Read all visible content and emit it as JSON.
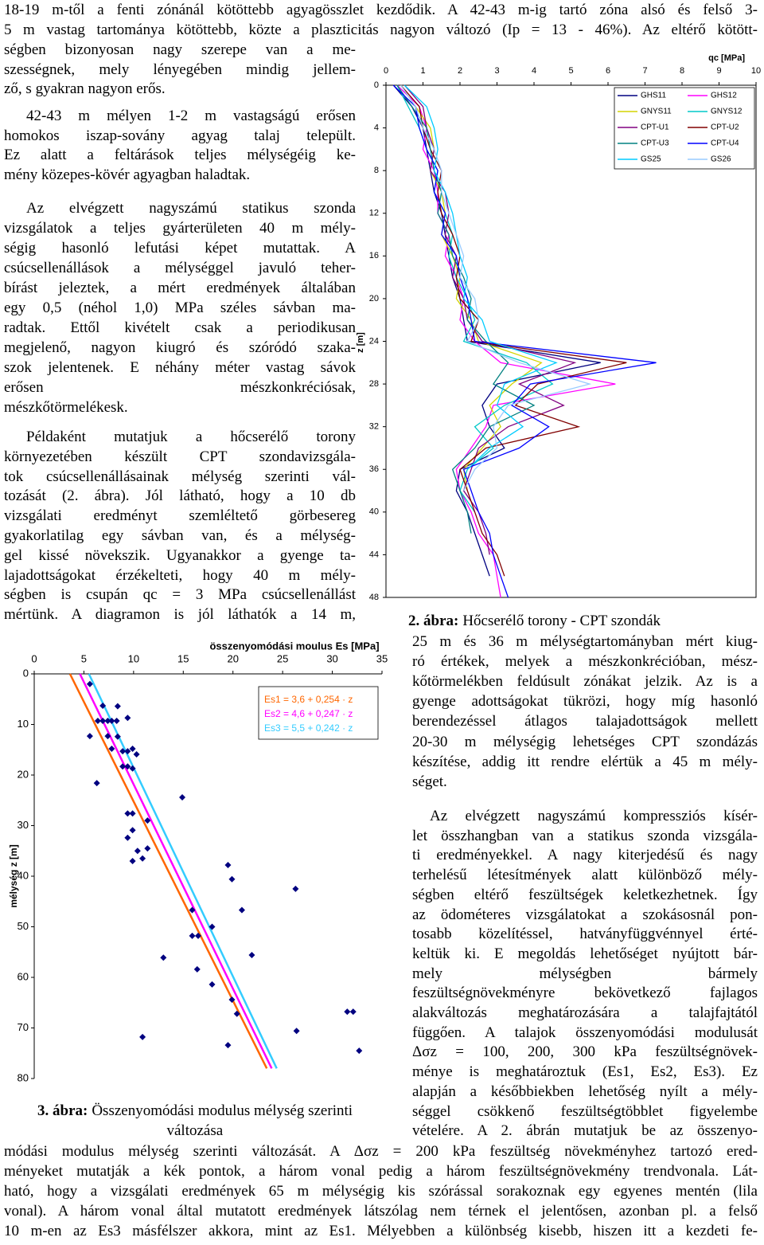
{
  "text": {
    "top": [
      "18-19 m-től a fenti zónánál kötöttebb agyagösszlet kezdődik. A 42-43 m-ig tartó zóna alsó és felső 3-",
      "5 m vastag tartománya kötöttebb, közte a plaszticitás nagyon változó (Ip = 13 - 46%). Az eltérő kötött-"
    ],
    "left": [
      [
        "ségben bizonyosan nagy szerepe van a me-",
        "szességnek, mely lényegében mindig jellem-",
        "ző, s gyakran nagyon erős."
      ],
      [
        "42-43 m mélyen 1-2 m vastagságú erősen",
        "homokos iszap-sovány agyag talaj települt.",
        "Ez alatt a feltárások teljes mélységéig ke-",
        "mény közepes-kövér agyagban haladtak."
      ],
      [
        "Az elvégzett nagyszámú statikus szonda",
        "vizsgálatok a teljes gyárterületen 40 m mély-",
        "ségig hasonló lefutási képet mutattak. A",
        "csúcsellenállások a mélységgel javuló teher-",
        "bírást jeleztek, a mért eredmények általában",
        "egy 0,5 (néhol 1,0) MPa széles sávban ma-",
        "radtak. Ettől kivételt csak a periodikusan",
        "megjelenő, nagyon kiugró és szóródó szaka-",
        "szok jelentenek. E néhány méter vastag sávok",
        "erősen mészkonkréciósak,",
        "mészkőtörmelékesk."
      ],
      [
        "Példaként mutatjuk a hőcserélő torony",
        "környezetében készült CPT szondavizsgála-",
        "tok csúcsellenállásainak mélység szerinti vál-",
        "tozását (2. ábra). Jól látható, hogy a 10 db",
        "vizsgálati eredményt szemléltető görbesereg",
        "gyakorlatilag egy sávban van, és a mélység-",
        "gel kissé növekszik. Ugyanakkor a gyenge ta-",
        "lajadottságokat érzékelteti, hogy 40 m mély-",
        "ségben is csupán qc = 3 MPa csúcsellenállást",
        "mértünk. A diagramon is jól láthatók a 14 m,"
      ]
    ],
    "right": [
      [
        "25 m és 36 m mélységtartományban mért kiug-",
        "ró értékek, melyek a mészkonkrécióban, mész-",
        "kőtörmelékben feldúsult zónákat jelzik. Az is a",
        "gyenge adottságokat tükrözi, hogy míg hasonló",
        "berendezéssel átlagos talajadottságok mellett",
        "20-30 m mélységig lehetséges CPT szondázás",
        "készítése, addig itt rendre elértük a 45 m mély-",
        "séget."
      ],
      [
        "Az elvégzett nagyszámú kompressziós kísér-",
        "let összhangban van a statikus szonda vizsgála-",
        "ti eredményekkel. A nagy kiterjedésű és nagy",
        "terhelésű létesítmények alatt különböző mély-",
        "ségben eltérő feszültségek keletkezhetnek. Így",
        "az ödométeres vizsgálatokat a szokásosnál pon-",
        "tosabb közelítéssel, hatványfüggvénnyel érté-",
        "keltük ki. E megoldás lehetőséget nyújtott bár-",
        "mely mélységben bármely",
        "feszültségnövekményre bekövetkező fajlagos",
        "alakváltozás meghatározására a talajfajtától",
        "függően. A talajok összenyomódási modulusát",
        "Δσz = 100, 200, 300 kPa feszültségnövek-",
        "ménye is meghatároztuk (Es1, Es2, Es3). Ez",
        "alapján a későbbiekben lehetőség nyílt a mély-",
        "séggel csökkenő feszültségtöbblet figyelembe",
        "vételére. A 2. ábrán mutatjuk be az összenyo-"
      ]
    ],
    "bottom": [
      "módási modulus mélység szerinti változását. A Δσz = 200 kPa feszültség növekményhez tartozó ered-",
      "ményeket mutatják a kék pontok, a három vonal pedig a három feszültségnövekmény trendvonala. Lát-",
      "ható, hogy a vizsgálati eredmények 65 m mélységig kis szórással sorakoznak egy egyenes mentén (lila",
      "vonal). A három vonal által mutatott eredmények látszólag nem térnek el jelentősen, azonban pl. a felső",
      "10 m-en az Es3 másfélszer akkora, mint az Es1. Mélyebben a különbség kisebb, hiszen itt a kezdeti fe-"
    ]
  },
  "captions": [
    {
      "label": "2. ábra:",
      "text": [
        "Hőcserélő torony - CPT szondák"
      ]
    },
    {
      "label": "3. ábra:",
      "text": [
        "Összenyomódási modulus mélység szerinti",
        "változása"
      ]
    }
  ],
  "chart_data": [
    {
      "type": "profile",
      "xlabel": "qc [MPa]",
      "ylabel": "z [m]",
      "xlim": [
        0,
        10
      ],
      "xticks": [
        0,
        1,
        2,
        3,
        4,
        5,
        6,
        7,
        8,
        9,
        10
      ],
      "ylim": [
        0,
        48
      ],
      "yticks": [
        0,
        4,
        8,
        12,
        16,
        20,
        24,
        28,
        32,
        36,
        40,
        44,
        48
      ],
      "y": [
        0,
        2,
        4,
        6,
        8,
        10,
        12,
        14,
        16,
        18,
        20,
        22,
        24,
        26,
        28,
        30,
        32,
        34,
        36,
        38,
        40,
        42,
        44,
        46,
        48
      ],
      "series": [
        {
          "name": "GHS11",
          "color": "#000080",
          "values": [
            0.2,
            0.7,
            1.0,
            1.1,
            1.2,
            1.3,
            1.5,
            1.6,
            1.7,
            1.8,
            2.0,
            2.1,
            2.2,
            5.8,
            3.0,
            2.6,
            2.8,
            3.2,
            2.0,
            1.9,
            2.2,
            2.4,
            2.6,
            2.8,
            null
          ]
        },
        {
          "name": "GHS12",
          "color": "#ff00ff",
          "values": [
            0.3,
            0.9,
            1.1,
            1.0,
            1.3,
            1.4,
            1.4,
            1.7,
            1.6,
            1.9,
            2.1,
            2.0,
            2.4,
            3.1,
            6.2,
            2.9,
            2.7,
            2.3,
            1.9,
            2.0,
            2.3,
            2.5,
            2.9,
            3.0,
            3.1
          ]
        },
        {
          "name": "GNYS11",
          "color": "#d4d400",
          "values": [
            0.4,
            0.8,
            1.2,
            1.3,
            1.2,
            1.5,
            1.6,
            1.5,
            1.8,
            2.0,
            1.9,
            2.3,
            2.5,
            4.2,
            3.4,
            2.8,
            3.1,
            2.6,
            2.1,
            2.2,
            null,
            null,
            null,
            null,
            null
          ]
        },
        {
          "name": "GNYS12",
          "color": "#00c8c8",
          "values": [
            0.3,
            0.6,
            0.9,
            1.1,
            1.4,
            1.3,
            1.6,
            1.8,
            1.7,
            1.9,
            2.2,
            2.4,
            2.1,
            3.8,
            4.5,
            3.2,
            2.4,
            2.9,
            2.2,
            2.0,
            2.4,
            null,
            null,
            null,
            null
          ]
        },
        {
          "name": "CPT-U1",
          "color": "#800080",
          "values": [
            0.5,
            1.0,
            1.1,
            1.3,
            1.2,
            1.6,
            1.7,
            1.6,
            1.9,
            1.8,
            2.1,
            2.2,
            2.6,
            5.1,
            3.6,
            4.8,
            3.3,
            2.5,
            2.3,
            2.1,
            2.5,
            2.7,
            2.8,
            null,
            null
          ]
        },
        {
          "name": "CPT-U2",
          "color": "#800000",
          "values": [
            0.4,
            0.9,
            1.0,
            1.2,
            1.5,
            1.4,
            1.5,
            1.8,
            2.0,
            1.9,
            2.0,
            2.5,
            2.3,
            6.5,
            4.1,
            3.5,
            5.2,
            2.7,
            2.0,
            2.2,
            2.4,
            2.6,
            3.0,
            3.2,
            null
          ]
        },
        {
          "name": "CPT-U3",
          "color": "#008080",
          "values": [
            0.3,
            0.7,
            1.1,
            1.2,
            1.3,
            1.5,
            1.4,
            1.7,
            1.8,
            2.1,
            2.3,
            2.2,
            2.7,
            3.3,
            2.9,
            4.0,
            2.8,
            2.4,
            1.8,
            2.0,
            2.2,
            2.3,
            null,
            null,
            null
          ]
        },
        {
          "name": "CPT-U4",
          "color": "#0000ff",
          "values": [
            0.2,
            0.8,
            0.9,
            1.1,
            1.4,
            1.3,
            1.6,
            1.5,
            1.9,
            2.0,
            2.2,
            2.3,
            2.4,
            7.3,
            3.9,
            3.4,
            4.4,
            3.6,
            2.1,
            2.3,
            2.5,
            2.8,
            2.9,
            3.1,
            3.3
          ]
        },
        {
          "name": "GS25",
          "color": "#00ccff",
          "values": [
            0.5,
            1.1,
            1.3,
            1.4,
            1.3,
            1.6,
            1.8,
            1.9,
            2.0,
            2.2,
            2.1,
            2.6,
            2.8,
            4.6,
            3.2,
            3.0,
            3.7,
            2.8,
            2.2,
            null,
            null,
            null,
            null,
            null,
            null
          ]
        },
        {
          "name": "GS26",
          "color": "#99ccff",
          "values": [
            0.4,
            0.8,
            1.0,
            1.3,
            1.5,
            1.5,
            1.7,
            1.9,
            2.1,
            2.0,
            2.4,
            2.5,
            2.2,
            3.6,
            5.5,
            3.3,
            2.9,
            3.0,
            2.4,
            2.1,
            null,
            null,
            null,
            null,
            null
          ]
        }
      ]
    },
    {
      "type": "scatter",
      "xlabel": "összenyomódási moulus Es [MPa]",
      "ylabel": "mélység z [m]",
      "xlim": [
        0,
        35
      ],
      "xticks": [
        0,
        5,
        10,
        15,
        20,
        25,
        30,
        35
      ],
      "ylim": [
        0,
        80
      ],
      "yticks": [
        0,
        10,
        20,
        30,
        40,
        50,
        60,
        70,
        80
      ],
      "color": "#000080",
      "x": [
        5.6,
        6.9,
        8.4,
        6.4,
        6.9,
        7.4,
        7.8,
        8.3,
        9.4,
        5.6,
        7.4,
        8.4,
        7.8,
        8.9,
        9.4,
        9.9,
        10.3,
        8.9,
        9.4,
        9.9,
        6.3,
        14.9,
        9.4,
        9.9,
        11.4,
        9.9,
        9.4,
        11.4,
        9.9,
        10.4,
        10.9,
        19.5,
        19.9,
        26.3,
        15.9,
        20.9,
        17.9,
        15.9,
        16.5,
        13.0,
        21.9,
        16.4,
        17.9,
        19.9,
        20.4,
        10.9,
        19.5,
        26.4,
        31.5,
        32.1,
        32.7
      ],
      "y": [
        2.0,
        6.3,
        6.4,
        9.3,
        9.3,
        9.3,
        9.3,
        9.3,
        8.7,
        12.3,
        12.3,
        12.4,
        14.8,
        15.3,
        15.3,
        14.8,
        15.9,
        18.3,
        18.3,
        18.7,
        21.6,
        24.4,
        27.6,
        27.6,
        29.0,
        30.9,
        32.4,
        34.5,
        37.0,
        35.0,
        36.5,
        37.8,
        40.6,
        42.5,
        46.7,
        46.7,
        50.0,
        51.8,
        51.8,
        56.1,
        55.6,
        58.4,
        61.4,
        64.4,
        67.2,
        71.8,
        73.4,
        70.6,
        66.8,
        66.8,
        74.5
      ],
      "lines": [
        {
          "label": "Es1 = 3,6 + 0,254 · z",
          "color": "#ff6600",
          "x": [
            3.6,
            23.4
          ],
          "y": [
            0,
            78
          ]
        },
        {
          "label": "Es2 = 4,6 + 0,247 · z",
          "color": "#ff00ff",
          "x": [
            4.6,
            23.9
          ],
          "y": [
            0,
            78
          ]
        },
        {
          "label": "Es3 = 5,5 + 0,242 · z",
          "color": "#33ccff",
          "x": [
            5.5,
            24.4
          ],
          "y": [
            0,
            78
          ]
        }
      ]
    }
  ]
}
